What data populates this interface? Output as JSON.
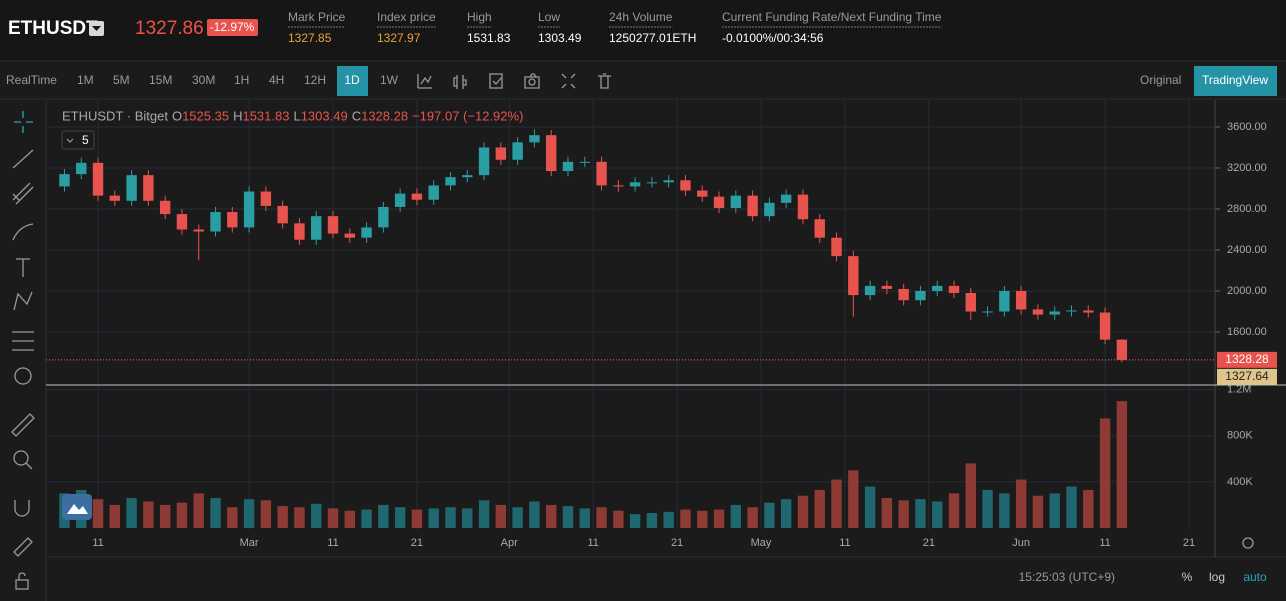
{
  "header": {
    "symbol": "ETHUSDT",
    "last_price": "1327.86",
    "change": "-12.97%",
    "stats": [
      {
        "label": "Mark Price",
        "value": "1327.85"
      },
      {
        "label": "Index price",
        "value": "1327.97"
      },
      {
        "label": "High",
        "value": "1531.83"
      },
      {
        "label": "Low",
        "value": "1303.49"
      },
      {
        "label": "24h Volume",
        "value": "1250277.01ETH"
      },
      {
        "label": "Current Funding Rate/Next Funding Time",
        "value": "-0.0100%/00:34:56"
      }
    ]
  },
  "toolbar": {
    "intervals": [
      "RealTime",
      "1M",
      "5M",
      "15M",
      "30M",
      "1H",
      "4H",
      "12H",
      "1D",
      "1W"
    ],
    "active": "1D",
    "views": [
      "Original",
      "TradingView"
    ],
    "active_view": "TradingView"
  },
  "footer": {
    "time": "15:25:03 (UTC+9)",
    "options": [
      "%",
      "log",
      "auto"
    ]
  },
  "chart_data": {
    "type": "candlestick",
    "legend": {
      "name": "ETHUSDT · Bitget",
      "interval_badge": "5",
      "O": 1525.35,
      "H": 1531.83,
      "L": 1303.49,
      "C": 1328.28,
      "change": "−197.07 (−12.92%)"
    },
    "up_color": "#2a9ea3",
    "down_color": "#e8534d",
    "volume_up_color": "#1f6870",
    "volume_down_color": "#8e3a35",
    "x": [
      6,
      8,
      10,
      12,
      14,
      16,
      18,
      20,
      22,
      24,
      26,
      28,
      30,
      32,
      34,
      36,
      38,
      40,
      42,
      44,
      46,
      48,
      50,
      52,
      54,
      56,
      58,
      60,
      62,
      64,
      66,
      68,
      70,
      72,
      74,
      76,
      78,
      80,
      82,
      84,
      86,
      88,
      90,
      92,
      94,
      96,
      98,
      100,
      102,
      104,
      106,
      108,
      110,
      112,
      114,
      116,
      118,
      120,
      122,
      124,
      126,
      128,
      130,
      132
    ],
    "open": [
      3020,
      3140,
      3250,
      2930,
      2880,
      3130,
      2880,
      2750,
      2600,
      2580,
      2770,
      2620,
      2970,
      2830,
      2660,
      2500,
      2730,
      2560,
      2520,
      2620,
      2820,
      2950,
      2890,
      3030,
      3110,
      3130,
      3400,
      3280,
      3450,
      3520,
      3170,
      3260,
      3260,
      3030,
      3020,
      3060,
      3060,
      3080,
      2980,
      2920,
      2810,
      2930,
      2730,
      2860,
      2940,
      2700,
      2520,
      2340,
      1960,
      2050,
      2020,
      1910,
      2000,
      2050,
      1980,
      1800,
      1800,
      2000,
      1820,
      1770,
      1800,
      1810,
      1790,
      1525.35
    ],
    "high": [
      3190,
      3300,
      3300,
      2980,
      3180,
      3180,
      2930,
      2800,
      2650,
      2820,
      2820,
      3020,
      3020,
      2880,
      2710,
      2780,
      2780,
      2610,
      2670,
      2870,
      3000,
      3000,
      3080,
      3160,
      3180,
      3450,
      3450,
      3500,
      3580,
      3570,
      3310,
      3310,
      3310,
      3080,
      3110,
      3110,
      3130,
      3130,
      3030,
      2970,
      2980,
      2980,
      2910,
      2990,
      2990,
      2750,
      2570,
      2390,
      2100,
      2100,
      2070,
      2050,
      2100,
      2100,
      2030,
      1850,
      2050,
      2050,
      1870,
      1850,
      1860,
      1860,
      1840,
      1531.83
    ],
    "low": [
      2970,
      3090,
      2880,
      2830,
      2830,
      2830,
      2700,
      2550,
      2300,
      2530,
      2570,
      2570,
      2780,
      2610,
      2450,
      2450,
      2510,
      2470,
      2470,
      2570,
      2770,
      2840,
      2840,
      2980,
      3060,
      3080,
      3230,
      3230,
      3400,
      3120,
      3120,
      3210,
      2980,
      2970,
      2970,
      3010,
      3010,
      2930,
      2870,
      2760,
      2760,
      2680,
      2680,
      2810,
      2650,
      2470,
      2290,
      1750,
      1910,
      1970,
      1860,
      1860,
      1950,
      1930,
      1720,
      1750,
      1750,
      1770,
      1720,
      1720,
      1750,
      1740,
      1480,
      1303.49
    ],
    "close": [
      3140,
      3250,
      2930,
      2880,
      3130,
      2880,
      2750,
      2600,
      2580,
      2770,
      2620,
      2970,
      2830,
      2660,
      2500,
      2730,
      2560,
      2520,
      2620,
      2820,
      2950,
      2890,
      3030,
      3110,
      3130,
      3400,
      3280,
      3450,
      3520,
      3170,
      3260,
      3260,
      3030,
      3020,
      3060,
      3060,
      3080,
      2980,
      2920,
      2810,
      2930,
      2730,
      2860,
      2940,
      2700,
      2520,
      2340,
      1960,
      2050,
      2020,
      1910,
      2000,
      2050,
      1980,
      1800,
      1800,
      2000,
      1820,
      1770,
      1800,
      1810,
      1790,
      1525.35,
      1328.28
    ],
    "volume": [
      300000,
      330000,
      250000,
      200000,
      260000,
      230000,
      200000,
      220000,
      300000,
      260000,
      180000,
      250000,
      240000,
      190000,
      180000,
      210000,
      170000,
      150000,
      160000,
      200000,
      180000,
      160000,
      170000,
      180000,
      170000,
      240000,
      200000,
      180000,
      230000,
      200000,
      190000,
      170000,
      180000,
      150000,
      120000,
      130000,
      140000,
      160000,
      150000,
      160000,
      200000,
      180000,
      220000,
      250000,
      280000,
      330000,
      420000,
      500000,
      360000,
      260000,
      240000,
      250000,
      230000,
      300000,
      560000,
      330000,
      300000,
      420000,
      280000,
      300000,
      360000,
      330000,
      950000,
      1100000
    ],
    "xlim": [
      3.8,
      143.1
    ],
    "xticks": [
      {
        "value": 10,
        "label": "11"
      },
      {
        "value": 28,
        "label": "Mar"
      },
      {
        "value": 38,
        "label": "11"
      },
      {
        "value": 48,
        "label": "21"
      },
      {
        "value": 59,
        "label": "Apr"
      },
      {
        "value": 69,
        "label": "11"
      },
      {
        "value": 79,
        "label": "21"
      },
      {
        "value": 89,
        "label": "May"
      },
      {
        "value": 99,
        "label": "11"
      },
      {
        "value": 109,
        "label": "21"
      },
      {
        "value": 120,
        "label": "Jun"
      },
      {
        "value": 130,
        "label": "11"
      },
      {
        "value": 140,
        "label": "21"
      }
    ],
    "ylim": [
      1083,
      3863
    ],
    "yticks": [
      {
        "value": 1600,
        "label": "1600.00"
      },
      {
        "value": 2000,
        "label": "2000.00"
      },
      {
        "value": 2400,
        "label": "2400.00"
      },
      {
        "value": 2800,
        "label": "2800.00"
      },
      {
        "value": 3200,
        "label": "3200.00"
      },
      {
        "value": 3600,
        "label": "3600.00"
      }
    ],
    "volume_ylim": [
      0,
      1240000
    ],
    "volume_ticks": [
      {
        "value": 400000,
        "label": "400K"
      },
      {
        "value": 800000,
        "label": "800K"
      },
      {
        "value": 1200000,
        "label": "1.2M"
      }
    ],
    "last_price": 1328.28,
    "mark_price": 1327.64,
    "grid": true
  }
}
